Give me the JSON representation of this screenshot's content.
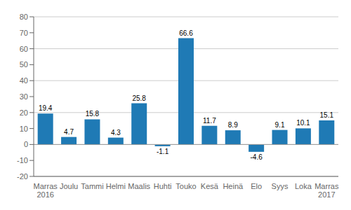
{
  "chart_data": {
    "type": "bar",
    "categories": [
      "Marras\n2016",
      "Joulu",
      "Tammi",
      "Helmi",
      "Maalis",
      "Huhti",
      "Touko",
      "Kesä",
      "Heinä",
      "Elo",
      "Syys",
      "Loka",
      "Marras\n2017"
    ],
    "values": [
      19.4,
      4.7,
      15.8,
      4.3,
      25.8,
      -1.1,
      66.6,
      11.7,
      8.9,
      -4.6,
      9.1,
      10.1,
      15.1
    ],
    "color": "#1f7ab5",
    "ylim": [
      -20,
      80
    ],
    "yticks": [
      -20,
      -10,
      0,
      10,
      20,
      30,
      40,
      50,
      60,
      70,
      80
    ],
    "grid": true,
    "data_labels": true
  }
}
